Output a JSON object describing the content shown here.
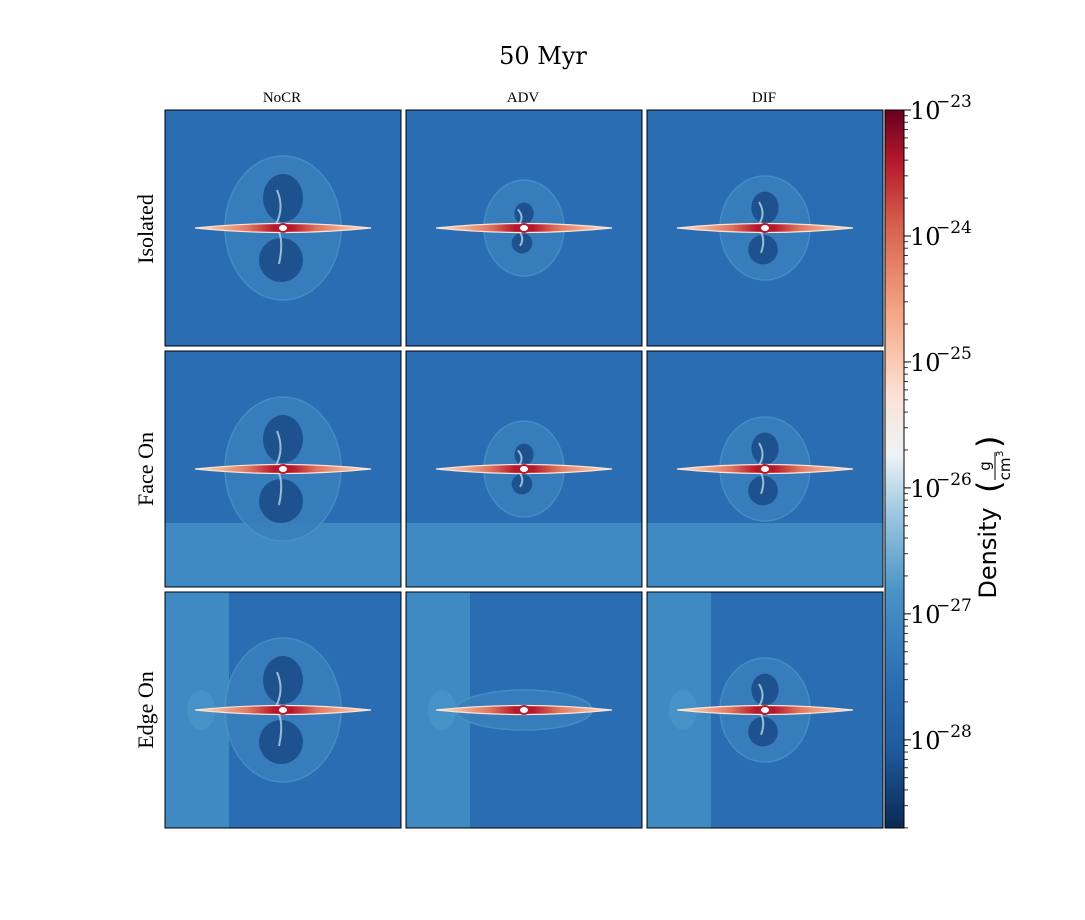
{
  "chart_data": {
    "type": "heatmap",
    "title": "50 Myr",
    "columns": [
      "NoCR",
      "ADV",
      "DIF"
    ],
    "rows": [
      "Isolated",
      "Face On",
      "Edge On"
    ],
    "colorbar": {
      "label": "Density",
      "unit_numerator": "g",
      "unit_denominator": "cm",
      "unit_denominator_power": "3",
      "scale": "log",
      "cmap": "RdBu_r",
      "range_exponents": [
        -28.7,
        -23
      ],
      "ticks": [
        {
          "base": "10",
          "exp": "−23",
          "value": -23
        },
        {
          "base": "10",
          "exp": "−24",
          "value": -24
        },
        {
          "base": "10",
          "exp": "−25",
          "value": -25
        },
        {
          "base": "10",
          "exp": "−26",
          "value": -26
        },
        {
          "base": "10",
          "exp": "−27",
          "value": -27
        },
        {
          "base": "10",
          "exp": "−28",
          "value": -28
        }
      ]
    }
  },
  "colors": {
    "background": "#2a6db3",
    "wind": "#3f8ac3",
    "wind_light": "#4b95c9",
    "cavity": "#1b4e8a",
    "disk_core": "#b5182b",
    "disk_outer": "#f6b89a",
    "disk_edge": "#fbe3d6"
  }
}
